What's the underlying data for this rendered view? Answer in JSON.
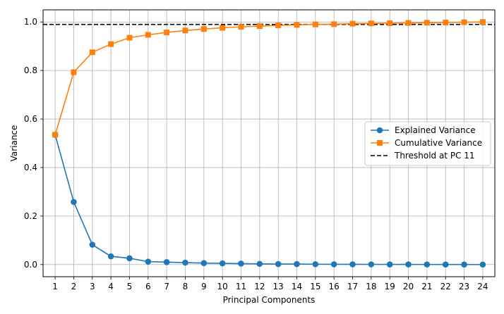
{
  "chart_data": {
    "type": "line",
    "title": "",
    "xlabel": "Principal Components",
    "ylabel": "Variance",
    "x": [
      1,
      2,
      3,
      4,
      5,
      6,
      7,
      8,
      9,
      10,
      11,
      12,
      13,
      14,
      15,
      16,
      17,
      18,
      19,
      20,
      21,
      22,
      23,
      24
    ],
    "xlim": [
      0.35,
      24.65
    ],
    "ylim": [
      -0.05,
      1.05
    ],
    "yticks": [
      0.0,
      0.2,
      0.4,
      0.6,
      0.8,
      1.0
    ],
    "ytick_labels": [
      "0.0",
      "0.2",
      "0.4",
      "0.6",
      "0.8",
      "1.0"
    ],
    "xtick_labels": [
      "1",
      "2",
      "3",
      "4",
      "5",
      "6",
      "7",
      "8",
      "9",
      "10",
      "11",
      "12",
      "13",
      "14",
      "15",
      "16",
      "17",
      "18",
      "19",
      "20",
      "21",
      "22",
      "23",
      "24"
    ],
    "grid": true,
    "legend_position": "center-right",
    "series": [
      {
        "name": "Explained Variance",
        "color": "#1f77b4",
        "marker": "circle",
        "values": [
          0.535,
          0.258,
          0.082,
          0.034,
          0.026,
          0.012,
          0.01,
          0.008,
          0.006,
          0.005,
          0.004,
          0.003,
          0.002,
          0.002,
          0.0015,
          0.001,
          0.001,
          0.0008,
          0.0006,
          0.0005,
          0.0004,
          0.0003,
          0.0002,
          0.0001
        ]
      },
      {
        "name": "Cumulative Variance",
        "color": "#ff7f0e",
        "marker": "square",
        "values": [
          0.535,
          0.793,
          0.875,
          0.909,
          0.935,
          0.947,
          0.957,
          0.965,
          0.971,
          0.976,
          0.98,
          0.983,
          0.986,
          0.988,
          0.99,
          0.991,
          0.993,
          0.994,
          0.995,
          0.996,
          0.997,
          0.998,
          0.999,
          1.0
        ]
      }
    ],
    "threshold": {
      "name": "Threshold at PC 11",
      "value": 0.99,
      "color": "#000000",
      "style": "dashed"
    }
  }
}
